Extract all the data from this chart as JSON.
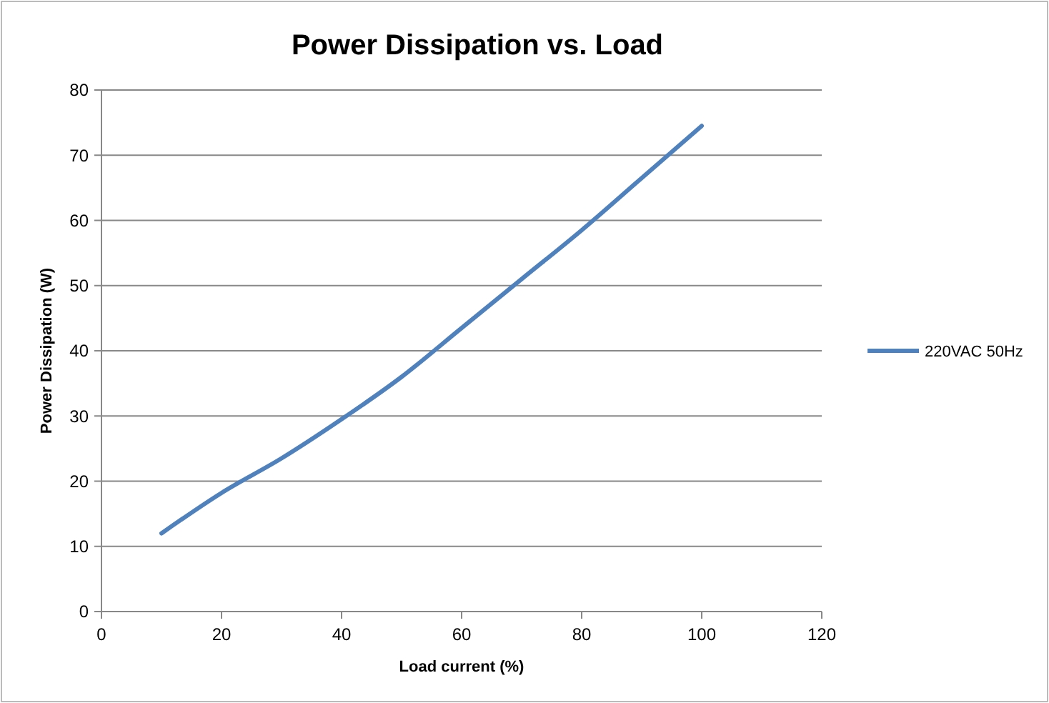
{
  "chart_data": {
    "type": "line",
    "title": "Power Dissipation vs. Load",
    "xlabel": "Load current (%)",
    "ylabel": "Power Dissipation  (W)",
    "x": [
      10,
      20,
      30,
      40,
      50,
      60,
      70,
      80,
      90,
      100
    ],
    "series": [
      {
        "name": "220VAC 50Hz",
        "color": "#4f81bd",
        "values": [
          12,
          18.2,
          23.5,
          29.5,
          36,
          43.5,
          51,
          58.5,
          66.5,
          74.5
        ]
      }
    ],
    "xlim": [
      0,
      120
    ],
    "xticks": [
      0,
      20,
      40,
      60,
      80,
      100,
      120
    ],
    "ylim": [
      0,
      80
    ],
    "yticks": [
      0,
      10,
      20,
      30,
      40,
      50,
      60,
      70,
      80
    ],
    "grid": "y",
    "legend": "right",
    "marker": "none",
    "line_style": "solid"
  }
}
